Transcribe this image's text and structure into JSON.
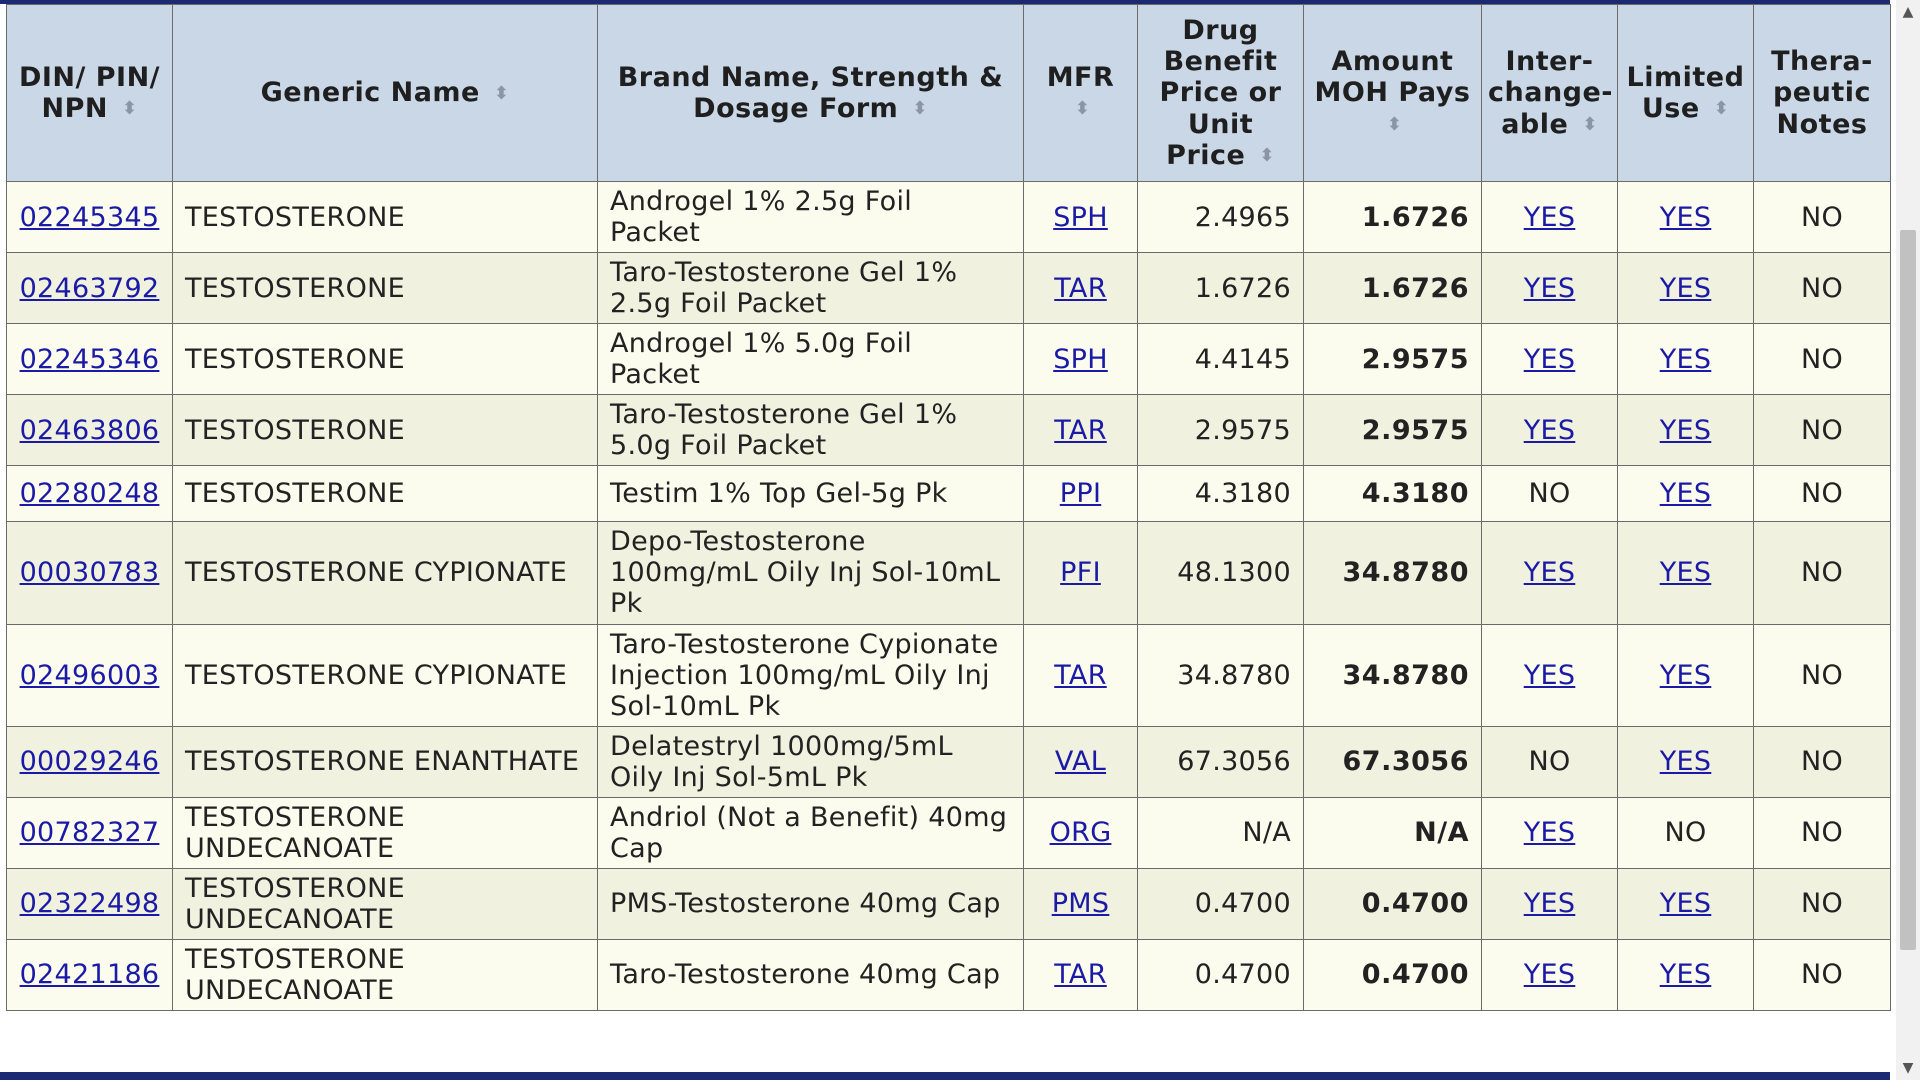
{
  "headers": {
    "din": "DIN/ PIN/ NPN",
    "generic": "Generic Name",
    "brand": "Brand Name, Strength & Dosage Form",
    "mfr": "MFR",
    "price": "Drug Benefit Price or Unit Price",
    "pays": "Amount MOH Pays",
    "inter": "Inter- change- able",
    "limited": "Limited Use",
    "notes": "Thera- peutic Notes"
  },
  "rows": [
    {
      "din": "02245345",
      "generic": "TESTOSTERONE",
      "brand": "Androgel 1% 2.5g Foil Packet",
      "mfr": "SPH",
      "price": "2.4965",
      "pays": "1.6726",
      "inter": "YES",
      "limited": "YES",
      "notes": "NO"
    },
    {
      "din": "02463792",
      "generic": "TESTOSTERONE",
      "brand": "Taro-Testosterone Gel 1% 2.5g Foil Packet",
      "mfr": "TAR",
      "price": "1.6726",
      "pays": "1.6726",
      "inter": "YES",
      "limited": "YES",
      "notes": "NO"
    },
    {
      "din": "02245346",
      "generic": "TESTOSTERONE",
      "brand": "Androgel 1% 5.0g Foil Packet",
      "mfr": "SPH",
      "price": "4.4145",
      "pays": "2.9575",
      "inter": "YES",
      "limited": "YES",
      "notes": "NO"
    },
    {
      "din": "02463806",
      "generic": "TESTOSTERONE",
      "brand": "Taro-Testosterone Gel 1% 5.0g Foil Packet",
      "mfr": "TAR",
      "price": "2.9575",
      "pays": "2.9575",
      "inter": "YES",
      "limited": "YES",
      "notes": "NO"
    },
    {
      "din": "02280248",
      "generic": "TESTOSTERONE",
      "brand": "Testim 1% Top Gel-5g Pk",
      "mfr": "PPI",
      "price": "4.3180",
      "pays": "4.3180",
      "inter": "NO",
      "limited": "YES",
      "notes": "NO"
    },
    {
      "din": "00030783",
      "generic": "TESTOSTERONE CYPIONATE",
      "brand": "Depo-Testosterone 100mg/mL Oily Inj Sol-10mL Pk",
      "mfr": "PFI",
      "price": "48.1300",
      "pays": "34.8780",
      "inter": "YES",
      "limited": "YES",
      "notes": "NO"
    },
    {
      "din": "02496003",
      "generic": "TESTOSTERONE CYPIONATE",
      "brand": "Taro-Testosterone Cypionate Injection 100mg/mL Oily Inj Sol-10mL Pk",
      "mfr": "TAR",
      "price": "34.8780",
      "pays": "34.8780",
      "inter": "YES",
      "limited": "YES",
      "notes": "NO"
    },
    {
      "din": "00029246",
      "generic": "TESTOSTERONE ENANTHATE",
      "brand": "Delatestryl 1000mg/5mL Oily Inj Sol-5mL Pk",
      "mfr": "VAL",
      "price": "67.3056",
      "pays": "67.3056",
      "inter": "NO",
      "limited": "YES",
      "notes": "NO"
    },
    {
      "din": "00782327",
      "generic": "TESTOSTERONE UNDECANOATE",
      "brand": "Andriol (Not a Benefit) 40mg Cap",
      "mfr": "ORG",
      "price": "N/A",
      "pays": "N/A",
      "inter": "YES",
      "limited": "NO",
      "notes": "NO"
    },
    {
      "din": "02322498",
      "generic": "TESTOSTERONE UNDECANOATE",
      "brand": "PMS-Testosterone 40mg Cap",
      "mfr": "PMS",
      "price": "0.4700",
      "pays": "0.4700",
      "inter": "YES",
      "limited": "YES",
      "notes": "NO"
    },
    {
      "din": "02421186",
      "generic": "TESTOSTERONE UNDECANOATE",
      "brand": "Taro-Testosterone 40mg Cap",
      "mfr": "TAR",
      "price": "0.4700",
      "pays": "0.4700",
      "inter": "YES",
      "limited": "YES",
      "notes": "NO"
    }
  ],
  "colors": {
    "header_bg": "#c9d7e6",
    "row_odd": "#fcfcee",
    "row_even": "#f1f1e0",
    "link": "#1a1aa6",
    "rule": "#1b2a73"
  },
  "icons": {
    "sort": "sort-arrows-icon",
    "scroll_up": "scroll-up-arrow-icon",
    "scroll_down": "scroll-down-arrow-icon"
  }
}
